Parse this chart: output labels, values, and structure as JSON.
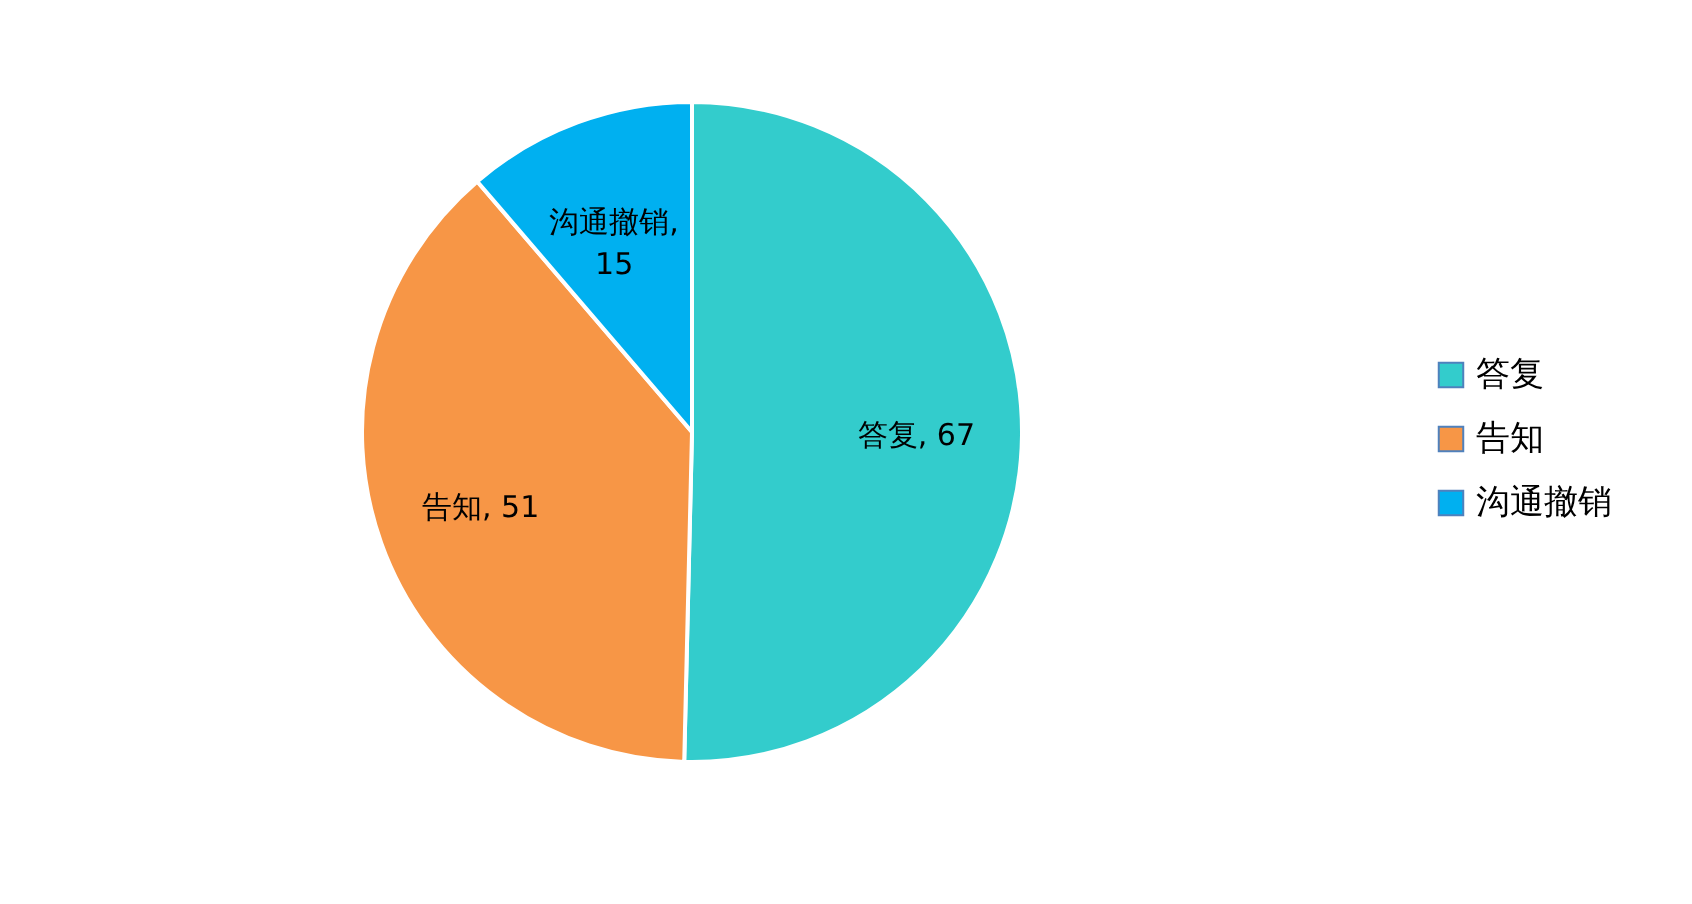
{
  "chart_data": {
    "type": "pie",
    "categories": [
      "答复",
      "告知",
      "沟通撤销"
    ],
    "values": [
      67,
      51,
      15
    ],
    "value_labels": [
      "答复, 67",
      "告知, 51",
      "沟通撤销, 15"
    ],
    "colors": [
      "#33cccc",
      "#f79646",
      "#00b0f0"
    ],
    "legend": "right"
  }
}
